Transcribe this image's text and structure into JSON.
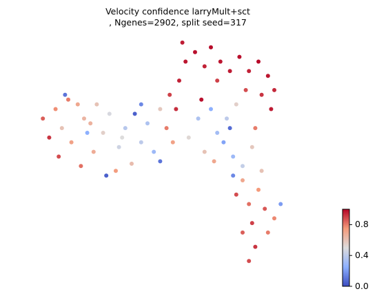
{
  "chart_data": {
    "type": "scatter",
    "title_lines": [
      "Velocity confidence larryMult+sct",
      ", Ngenes=2902, split seed=317"
    ],
    "xlabel": "",
    "ylabel": "",
    "axes_visible": false,
    "grid": false,
    "colormap": "coolwarm",
    "color_range": [
      0.0,
      1.0
    ],
    "colorbar": {
      "position": "bottom-right",
      "ticks": [
        0.0,
        0.4,
        0.8
      ],
      "tick_labels": [
        "0.0",
        "0.4",
        "0.8"
      ]
    },
    "ylim": [
      0,
      1
    ],
    "xlim": [
      0,
      1
    ],
    "points": [
      [
        0.13,
        0.62,
        0.6
      ],
      [
        0.09,
        0.58,
        0.92
      ],
      [
        0.07,
        0.66,
        0.85
      ],
      [
        0.11,
        0.7,
        0.77
      ],
      [
        0.15,
        0.74,
        0.8
      ],
      [
        0.18,
        0.72,
        0.7
      ],
      [
        0.2,
        0.66,
        0.65
      ],
      [
        0.16,
        0.56,
        0.72
      ],
      [
        0.12,
        0.5,
        0.88
      ],
      [
        0.19,
        0.46,
        0.82
      ],
      [
        0.23,
        0.52,
        0.68
      ],
      [
        0.26,
        0.6,
        0.55
      ],
      [
        0.28,
        0.68,
        0.48
      ],
      [
        0.24,
        0.72,
        0.6
      ],
      [
        0.31,
        0.54,
        0.45
      ],
      [
        0.33,
        0.62,
        0.38
      ],
      [
        0.35,
        0.47,
        0.62
      ],
      [
        0.3,
        0.44,
        0.74
      ],
      [
        0.38,
        0.56,
        0.4
      ],
      [
        0.4,
        0.64,
        0.35
      ],
      [
        0.42,
        0.52,
        0.3
      ],
      [
        0.44,
        0.7,
        0.58
      ],
      [
        0.46,
        0.62,
        0.8
      ],
      [
        0.48,
        0.56,
        0.72
      ],
      [
        0.47,
        0.76,
        0.9
      ],
      [
        0.5,
        0.82,
        0.95
      ],
      [
        0.52,
        0.9,
        0.97
      ],
      [
        0.51,
        0.98,
        0.96
      ],
      [
        0.55,
        0.94,
        0.98
      ],
      [
        0.58,
        0.88,
        0.95
      ],
      [
        0.6,
        0.96,
        0.99
      ],
      [
        0.63,
        0.9,
        0.97
      ],
      [
        0.62,
        0.82,
        0.9
      ],
      [
        0.66,
        0.86,
        0.96
      ],
      [
        0.69,
        0.92,
        0.98
      ],
      [
        0.72,
        0.86,
        0.95
      ],
      [
        0.75,
        0.9,
        0.99
      ],
      [
        0.78,
        0.84,
        0.97
      ],
      [
        0.8,
        0.78,
        0.94
      ],
      [
        0.76,
        0.76,
        0.92
      ],
      [
        0.71,
        0.78,
        0.88
      ],
      [
        0.68,
        0.72,
        0.55
      ],
      [
        0.65,
        0.66,
        0.4
      ],
      [
        0.62,
        0.6,
        0.32
      ],
      [
        0.6,
        0.7,
        0.25
      ],
      [
        0.64,
        0.56,
        0.22
      ],
      [
        0.67,
        0.5,
        0.3
      ],
      [
        0.7,
        0.46,
        0.42
      ],
      [
        0.73,
        0.54,
        0.58
      ],
      [
        0.74,
        0.62,
        0.8
      ],
      [
        0.7,
        0.4,
        0.7
      ],
      [
        0.68,
        0.34,
        0.88
      ],
      [
        0.72,
        0.3,
        0.82
      ],
      [
        0.75,
        0.36,
        0.75
      ],
      [
        0.77,
        0.28,
        0.86
      ],
      [
        0.73,
        0.22,
        0.9
      ],
      [
        0.7,
        0.18,
        0.85
      ],
      [
        0.74,
        0.12,
        0.92
      ],
      [
        0.72,
        0.06,
        0.88
      ],
      [
        0.78,
        0.18,
        0.8
      ],
      [
        0.8,
        0.24,
        0.78
      ],
      [
        0.82,
        0.3,
        0.2
      ],
      [
        0.66,
        0.62,
        0.08
      ],
      [
        0.56,
        0.66,
        0.35
      ],
      [
        0.53,
        0.58,
        0.52
      ],
      [
        0.58,
        0.52,
        0.6
      ],
      [
        0.44,
        0.48,
        0.1
      ],
      [
        0.36,
        0.68,
        0.05
      ],
      [
        0.38,
        0.72,
        0.15
      ],
      [
        0.21,
        0.6,
        0.25
      ],
      [
        0.27,
        0.42,
        0.05
      ],
      [
        0.14,
        0.76,
        0.1
      ],
      [
        0.57,
        0.74,
        0.98
      ],
      [
        0.49,
        0.7,
        0.93
      ],
      [
        0.79,
        0.7,
        0.96
      ],
      [
        0.67,
        0.42,
        0.15
      ],
      [
        0.76,
        0.44,
        0.6
      ],
      [
        0.61,
        0.48,
        0.7
      ],
      [
        0.32,
        0.58,
        0.5
      ],
      [
        0.22,
        0.64,
        0.66
      ]
    ]
  }
}
